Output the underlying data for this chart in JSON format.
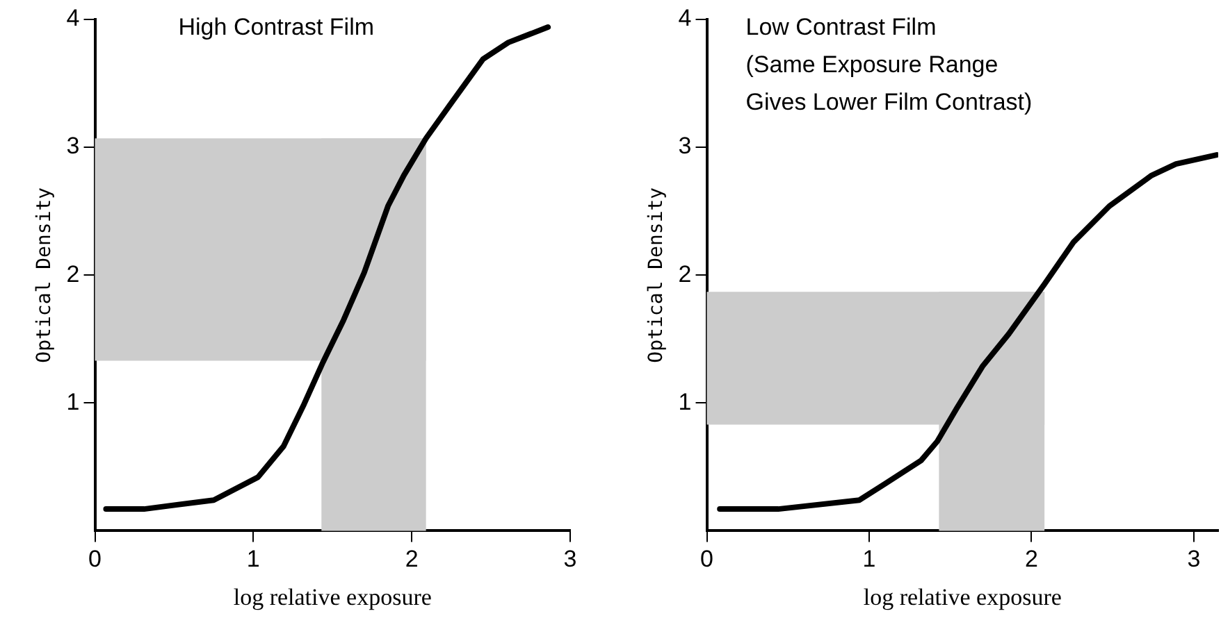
{
  "chart_data": [
    {
      "type": "line",
      "title": "High Contrast Film",
      "xlabel": "log relative exposure",
      "ylabel": "Optical Density",
      "xlim": [
        0,
        3
      ],
      "ylim": [
        0,
        4
      ],
      "xticks": [
        0,
        1,
        2,
        3
      ],
      "yticks": [
        1,
        2,
        3,
        4
      ],
      "marker": "none",
      "line_style": "solid",
      "legend": false,
      "grid": false,
      "bands": [
        {
          "axis": "x",
          "from": 1.43,
          "to": 2.09,
          "color": "#cccccc"
        },
        {
          "axis": "y",
          "from": 1.33,
          "to": 3.07,
          "color": "#cccccc"
        }
      ],
      "series": [
        {
          "color": "#000000",
          "x": [
            0.07,
            0.31,
            0.75,
            1.03,
            1.19,
            1.32,
            1.44,
            1.57,
            1.7,
            1.85,
            1.95,
            2.09,
            2.24,
            2.45,
            2.61,
            2.86
          ],
          "values": [
            0.17,
            0.17,
            0.24,
            0.42,
            0.66,
            0.99,
            1.32,
            1.65,
            2.02,
            2.54,
            2.78,
            3.07,
            3.33,
            3.69,
            3.82,
            3.94
          ]
        }
      ]
    },
    {
      "type": "line",
      "title": "Low Contrast Film\n(Same Exposure Range\nGives Lower Film Contrast)",
      "xlabel": "log relative exposure",
      "ylabel": "Optical Density",
      "xlim": [
        0,
        3.15
      ],
      "ylim": [
        0,
        4
      ],
      "xticks": [
        0,
        1,
        2,
        3
      ],
      "yticks": [
        1,
        2,
        3,
        4
      ],
      "marker": "none",
      "line_style": "solid",
      "legend": false,
      "grid": false,
      "bands": [
        {
          "axis": "x",
          "from": 1.43,
          "to": 2.08,
          "color": "#cccccc"
        },
        {
          "axis": "y",
          "from": 0.83,
          "to": 1.87,
          "color": "#cccccc"
        }
      ],
      "series": [
        {
          "color": "#000000",
          "x": [
            0.08,
            0.44,
            0.94,
            1.1,
            1.32,
            1.42,
            1.54,
            1.7,
            1.86,
            2.08,
            2.26,
            2.48,
            2.74,
            2.89,
            3.14
          ],
          "values": [
            0.17,
            0.17,
            0.24,
            0.37,
            0.55,
            0.7,
            0.96,
            1.29,
            1.54,
            1.93,
            2.26,
            2.54,
            2.78,
            2.87,
            2.94
          ]
        }
      ]
    }
  ]
}
